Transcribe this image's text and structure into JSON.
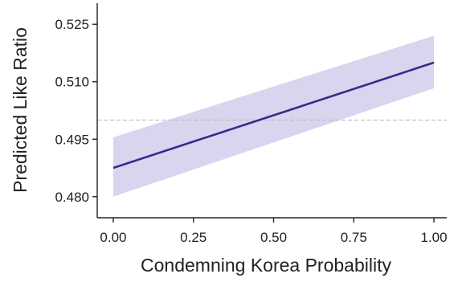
{
  "chart_data": {
    "type": "line",
    "title": "",
    "xlabel": "Condemning Korea Probability",
    "ylabel": "Predicted Like Ratio",
    "xlim": [
      -0.05,
      1.04
    ],
    "ylim": [
      0.4745,
      0.5305
    ],
    "x_ticks": [
      0.0,
      0.25,
      0.5,
      0.75,
      1.0
    ],
    "x_tick_labels": [
      "0.00",
      "0.25",
      "0.50",
      "0.75",
      "1.00"
    ],
    "y_ticks": [
      0.48,
      0.495,
      0.51,
      0.525
    ],
    "y_tick_labels": [
      "0.480",
      "0.495",
      "0.510",
      "0.525"
    ],
    "grid": false,
    "reference_line": {
      "y": 0.5,
      "style": "dashed",
      "color": "#bbbbbb"
    },
    "series": [
      {
        "x": [
          0.0,
          1.0
        ],
        "y": [
          0.4875,
          0.515
        ],
        "ci_lower": [
          0.48,
          0.5083
        ],
        "ci_upper": [
          0.4955,
          0.522
        ],
        "color": "#3a2a8c",
        "band_color": "#d9d5ef"
      }
    ]
  }
}
